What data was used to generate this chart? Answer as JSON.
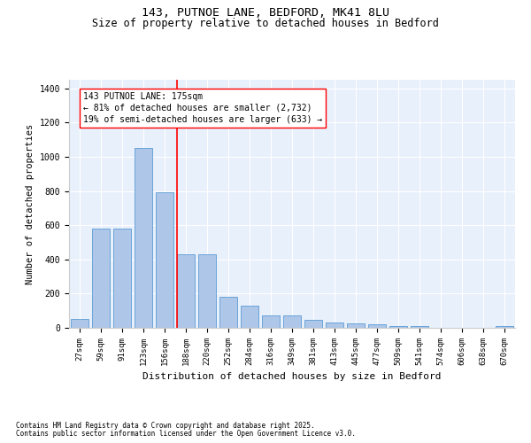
{
  "title1": "143, PUTNOE LANE, BEDFORD, MK41 8LU",
  "title2": "Size of property relative to detached houses in Bedford",
  "xlabel": "Distribution of detached houses by size in Bedford",
  "ylabel": "Number of detached properties",
  "categories": [
    "27sqm",
    "59sqm",
    "91sqm",
    "123sqm",
    "156sqm",
    "188sqm",
    "220sqm",
    "252sqm",
    "284sqm",
    "316sqm",
    "349sqm",
    "381sqm",
    "413sqm",
    "445sqm",
    "477sqm",
    "509sqm",
    "541sqm",
    "574sqm",
    "606sqm",
    "638sqm",
    "670sqm"
  ],
  "values": [
    50,
    580,
    580,
    1050,
    790,
    430,
    430,
    180,
    130,
    70,
    70,
    45,
    30,
    25,
    20,
    10,
    10,
    0,
    0,
    0,
    10
  ],
  "bar_color": "#aec6e8",
  "bar_edge_color": "#5b9bd5",
  "red_line_x": 4.6,
  "annotation_text": "143 PUTNOE LANE: 175sqm\n← 81% of detached houses are smaller (2,732)\n19% of semi-detached houses are larger (633) →",
  "footnote1": "Contains HM Land Registry data © Crown copyright and database right 2025.",
  "footnote2": "Contains public sector information licensed under the Open Government Licence v3.0.",
  "bg_color": "#e8f0fb",
  "ylim_max": 1450,
  "grid_color": "white",
  "title_fs": 9.5,
  "sub_fs": 8.5,
  "tick_fs": 6.5,
  "ylabel_fs": 7.5,
  "xlabel_fs": 8,
  "ann_fs": 7,
  "foot_fs": 5.5
}
